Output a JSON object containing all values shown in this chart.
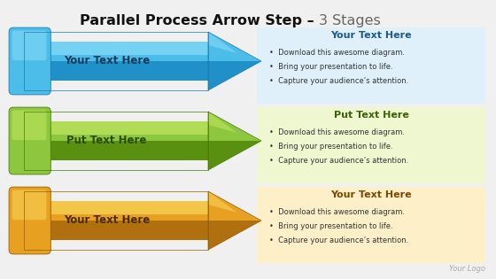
{
  "title_bold": "Parallel Process Arrow Step – ",
  "title_light": "3 Stages",
  "background_color": "#f0f0f0",
  "arrows": [
    {
      "label": "Your Text Here",
      "color_top": "#7dd6f5",
      "color_mid": "#4bbde8",
      "color_bot": "#2090c8",
      "color_edge": "#1a7ab0",
      "text_color": "#1a3a5c",
      "box_bg": "#dff0fa",
      "heading": "Your Text Here",
      "heading_color": "#1a5a8a",
      "bullets": [
        "Download this awesome diagram.",
        "Bring your presentation to life.",
        "Capture your audience’s attention."
      ],
      "bullet_color": "#333333"
    },
    {
      "label": "Put Text Here",
      "color_top": "#b8e05a",
      "color_mid": "#8dc63f",
      "color_bot": "#5a9010",
      "color_edge": "#4a7a08",
      "text_color": "#2a4a08",
      "box_bg": "#eef7d0",
      "heading": "Put Text Here",
      "heading_color": "#3a6008",
      "bullets": [
        "Download this awesome diagram.",
        "Bring your presentation to life.",
        "Capture your audience’s attention."
      ],
      "bullet_color": "#333333"
    },
    {
      "label": "Your Text Here",
      "color_top": "#f5cc50",
      "color_mid": "#e8a020",
      "color_bot": "#b07010",
      "color_edge": "#906000",
      "text_color": "#4a2a00",
      "box_bg": "#fdf0c8",
      "heading": "Your Text Here",
      "heading_color": "#7a4800",
      "bullets": [
        "Download this awesome diagram.",
        "Bring your presentation to life.",
        "Capture your audience’s attention."
      ],
      "bullet_color": "#333333"
    }
  ],
  "logo_text": "Your Logo",
  "logo_color": "#aaaaaa"
}
